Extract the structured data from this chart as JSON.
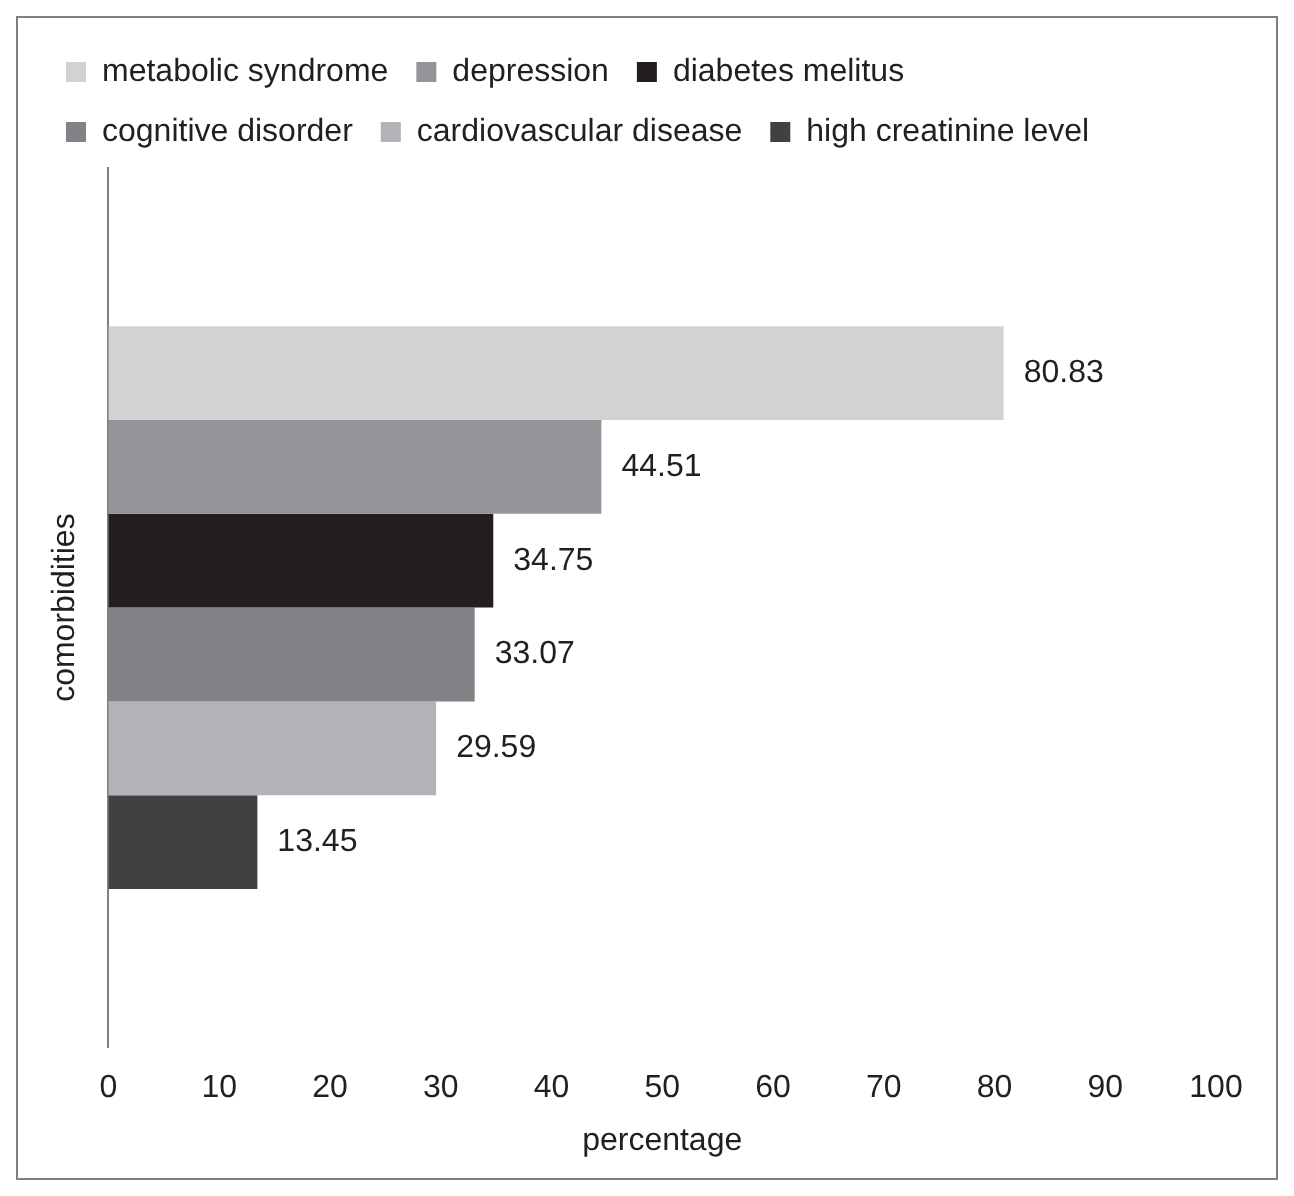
{
  "chart_data": {
    "type": "bar",
    "orientation": "horizontal",
    "categories": [
      null
    ],
    "xlabel": "percentage",
    "ylabel": "comorbidities",
    "series": [
      {
        "name": "metabolic syndrome",
        "color": "#d1d2d4",
        "values": [
          80.83
        ]
      },
      {
        "name": "depression",
        "color": "#939598",
        "values": [
          44.51
        ]
      },
      {
        "name": "diabetes melitus",
        "color": "#231f20",
        "values": [
          34.75
        ]
      },
      {
        "name": "cognitive disorder",
        "color": "#808285",
        "values": [
          33.07
        ]
      },
      {
        "name": "cardiovascular disease",
        "color": "#b1b3b6",
        "values": [
          29.59
        ]
      },
      {
        "name": "high creatinine level",
        "color": "#414042",
        "values": [
          13.45
        ]
      }
    ],
    "xlim": [
      0,
      100
    ],
    "xticks": [
      0,
      10,
      20,
      30,
      40,
      50,
      60,
      70,
      80,
      90,
      100
    ],
    "data_labels": true,
    "grid": false,
    "legend": "top"
  }
}
